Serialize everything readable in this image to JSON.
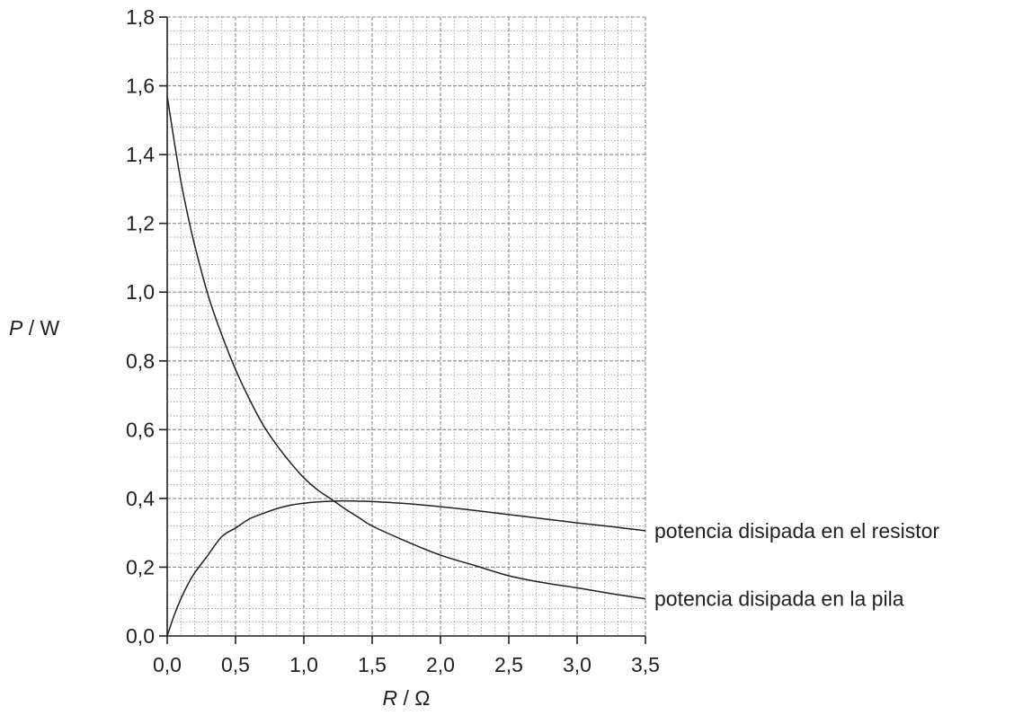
{
  "chart_data": {
    "type": "line",
    "title": "",
    "xlabel": {
      "symbol": "R",
      "unit": " / Ω"
    },
    "ylabel": {
      "symbol": "P",
      "unit": " / W"
    },
    "xlim": [
      0,
      3.5
    ],
    "ylim": [
      0,
      1.8
    ],
    "x_ticks": [
      {
        "value": 0.0,
        "label": "0,0"
      },
      {
        "value": 0.5,
        "label": "0,5"
      },
      {
        "value": 1.0,
        "label": "1,0"
      },
      {
        "value": 1.5,
        "label": "1,5"
      },
      {
        "value": 2.0,
        "label": "2,0"
      },
      {
        "value": 2.5,
        "label": "2,5"
      },
      {
        "value": 3.0,
        "label": "3,0"
      },
      {
        "value": 3.5,
        "label": "3,5"
      }
    ],
    "y_ticks": [
      {
        "value": 0.0,
        "label": "0,0"
      },
      {
        "value": 0.2,
        "label": "0,2"
      },
      {
        "value": 0.4,
        "label": "0,4"
      },
      {
        "value": 0.6,
        "label": "0,6"
      },
      {
        "value": 0.8,
        "label": "0,8"
      },
      {
        "value": 1.0,
        "label": "1,0"
      },
      {
        "value": 1.2,
        "label": "1,2"
      },
      {
        "value": 1.4,
        "label": "1,4"
      },
      {
        "value": 1.6,
        "label": "1,6"
      },
      {
        "value": 1.8,
        "label": "1,8"
      }
    ],
    "grid": true,
    "grid_minor_divisions": 5,
    "series": [
      {
        "name": "potencia disipada en el resistor",
        "x": [
          0,
          0.05,
          0.1,
          0.15,
          0.2,
          0.3,
          0.4,
          0.5,
          0.6,
          0.7,
          0.8,
          0.9,
          1.0,
          1.1,
          1.2,
          1.3,
          1.4,
          1.5,
          1.75,
          2.0,
          2.25,
          2.5,
          2.75,
          3.0,
          3.25,
          3.5
        ],
        "y": [
          0,
          0.059,
          0.108,
          0.149,
          0.183,
          0.236,
          0.289,
          0.314,
          0.34,
          0.356,
          0.37,
          0.38,
          0.386,
          0.39,
          0.392,
          0.393,
          0.392,
          0.391,
          0.385,
          0.376,
          0.365,
          0.353,
          0.341,
          0.329,
          0.318,
          0.306
        ]
      },
      {
        "name": "potencia disipada en la pila",
        "x": [
          0,
          0.05,
          0.1,
          0.15,
          0.2,
          0.3,
          0.4,
          0.5,
          0.6,
          0.7,
          0.8,
          0.9,
          1.0,
          1.1,
          1.2,
          1.3,
          1.4,
          1.5,
          1.75,
          2.0,
          2.25,
          2.5,
          2.75,
          3.0,
          3.25,
          3.5
        ],
        "y": [
          1.57,
          1.442,
          1.323,
          1.225,
          1.138,
          0.99,
          0.875,
          0.775,
          0.69,
          0.615,
          0.556,
          0.505,
          0.46,
          0.425,
          0.398,
          0.37,
          0.345,
          0.32,
          0.275,
          0.235,
          0.205,
          0.175,
          0.155,
          0.14,
          0.123,
          0.108
        ]
      }
    ],
    "colors": {
      "axis": "#231f20",
      "grid": "#8a8a8a",
      "curve": "#231f20"
    }
  }
}
